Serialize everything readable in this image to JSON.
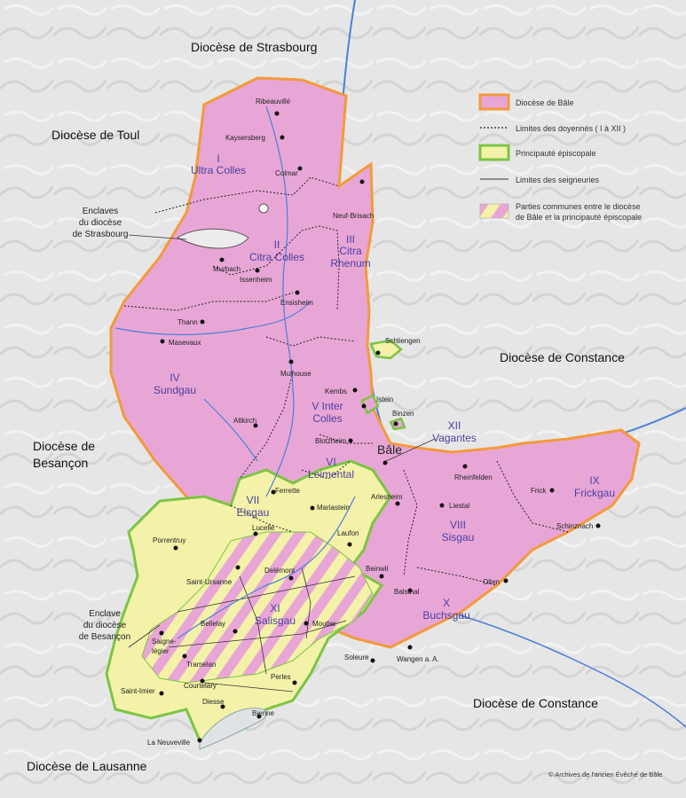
{
  "colors": {
    "diocese_fill": "#e8a6d6",
    "diocese_border": "#f39a3a",
    "principality_fill": "#f3f2a8",
    "principality_border": "#7cc444",
    "deanery_label": "#4a3fa0",
    "river": "#4a7fd8",
    "lake": "#dfe3e6",
    "terrain": "#e4e4e4"
  },
  "dioceses": {
    "strasbourg": "Diocèse de Strasbourg",
    "toul": "Diocèse de Toul",
    "constance_north": "Diocèse de Constance",
    "besancon_line1": "Diocèse de",
    "besancon_line2": "Besançon",
    "constance_south": "Diocèse de Constance",
    "lausanne": "Diocèse de Lausanne"
  },
  "deaneries": [
    {
      "num": "I",
      "name": "Ultra Colles"
    },
    {
      "num": "II",
      "name": "Citra Colles"
    },
    {
      "num": "III",
      "name": "Citra",
      "name2": "Rhenum"
    },
    {
      "num": "IV",
      "name": "Sundgau"
    },
    {
      "num": "V Inter",
      "name": "Colles"
    },
    {
      "num": "VI",
      "name": "Leimental"
    },
    {
      "num": "VII",
      "name": "Elsgau"
    },
    {
      "num": "VIII",
      "name": "Sisgau"
    },
    {
      "num": "IX",
      "name": "Frickgau"
    },
    {
      "num": "X",
      "name": "Buchsgau"
    },
    {
      "num": "XI",
      "name": "Salisgau"
    },
    {
      "num": "XII",
      "name": "Vagantes"
    }
  ],
  "towns": [
    "Ribeauvillé",
    "Kaysersberg",
    "Colmar",
    "Neuf-Brisach",
    "Murbach",
    "Issenheim",
    "Ensisheim",
    "Thann",
    "Masevaux",
    "Mulhouse",
    "Kembs",
    "Schliengen",
    "Istein",
    "Binzen",
    "Altkirch",
    "Blotzheim",
    "Bâle",
    "Rheinfelden",
    "Frick",
    "Schinznach",
    "Liestal",
    "Arlesheim",
    "Ferrette",
    "Mariastein",
    "Lucelle",
    "Laufon",
    "Porrentruy",
    "Delémont",
    "Saint-Ursanne",
    "Beinwil",
    "Balsthal",
    "Olten",
    "Bellelay",
    "Moutier",
    "Saigne-",
    "légier",
    "Tramelan",
    "Saint-Imier",
    "Courtelary",
    "Perles",
    "Diesse",
    "Bienne",
    "La Neuveville",
    "Soleure",
    "Wangen a. A."
  ],
  "enclaves": {
    "strasbourg": [
      "Enclaves",
      "du diocèse",
      "de Strasbourg"
    ],
    "besancon": [
      "Enclave",
      "du diocèse",
      "de Besançon"
    ]
  },
  "legend": {
    "items": [
      {
        "icon": "diocese-swatch",
        "label": "Diocèse de Bâle"
      },
      {
        "icon": "dotted-line",
        "label": "Limites des doyennés ( I à XII )"
      },
      {
        "icon": "principality-swatch",
        "label": "Principauté épiscopale"
      },
      {
        "icon": "solid-line",
        "label": "Limites des seigneuries"
      },
      {
        "icon": "striped-swatch",
        "label": "Parties communes entre le diocèse",
        "label2": "de Bâle et la principauté épiscopale"
      }
    ]
  },
  "credit": "© Archives de l'ancien Évêché de Bâle"
}
